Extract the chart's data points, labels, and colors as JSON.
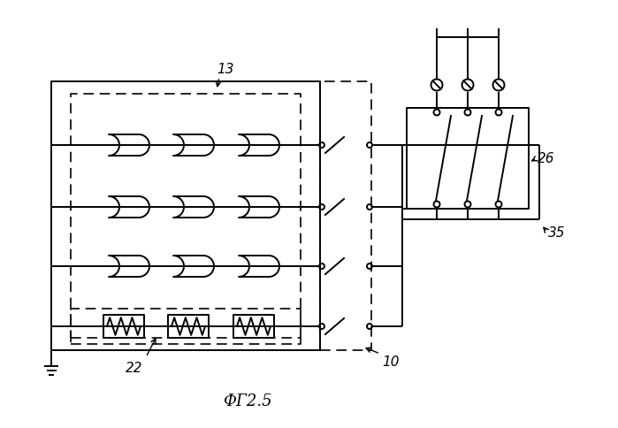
{
  "title": "ФГ2.5",
  "label_13": "13",
  "label_22": "22",
  "label_26": "26",
  "label_35": "35",
  "label_10": "10",
  "fig_color": "#000000",
  "bg_color": "#ffffff",
  "figsize": [
    6.99,
    4.84
  ],
  "dpi": 100
}
